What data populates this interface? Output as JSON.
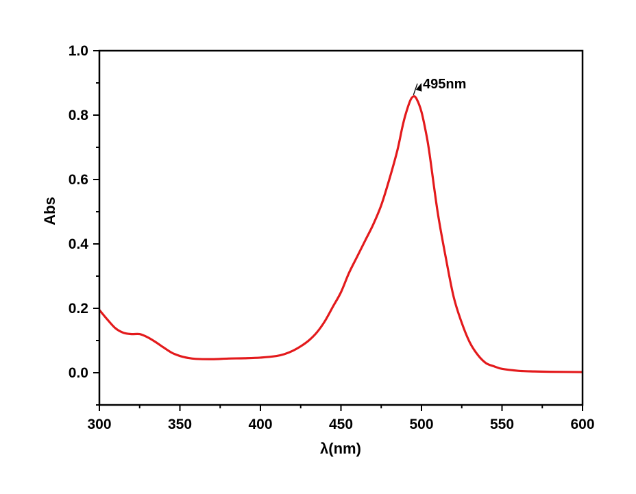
{
  "chart_data": {
    "type": "line",
    "title": "",
    "xlabel": "λ(nm)",
    "ylabel": "Abs",
    "xlim": [
      300,
      600
    ],
    "ylim": [
      -0.1,
      1.0
    ],
    "xticks": [
      300,
      350,
      400,
      450,
      500,
      550,
      600
    ],
    "xtick_labels": [
      "300",
      "350",
      "400",
      "450",
      "500",
      "550",
      "600"
    ],
    "yticks": [
      0.0,
      0.2,
      0.4,
      0.6,
      0.8,
      1.0
    ],
    "ytick_labels": [
      "0.0",
      "0.2",
      "0.4",
      "0.6",
      "0.8",
      "1.0"
    ],
    "grid": false,
    "series": [
      {
        "name": "Abs",
        "color": "#e31a1c",
        "x": [
          300,
          305,
          310,
          315,
          320,
          325,
          330,
          335,
          340,
          345,
          350,
          355,
          360,
          370,
          380,
          390,
          400,
          410,
          415,
          420,
          425,
          430,
          435,
          440,
          445,
          450,
          455,
          460,
          465,
          470,
          475,
          480,
          485,
          488,
          490,
          493,
          495,
          497,
          500,
          503,
          505,
          510,
          515,
          520,
          525,
          530,
          535,
          540,
          545,
          550,
          560,
          570,
          580,
          600
        ],
        "y": [
          0.195,
          0.165,
          0.138,
          0.124,
          0.12,
          0.12,
          0.11,
          0.095,
          0.078,
          0.062,
          0.052,
          0.046,
          0.043,
          0.042,
          0.044,
          0.045,
          0.047,
          0.052,
          0.058,
          0.068,
          0.082,
          0.1,
          0.125,
          0.16,
          0.205,
          0.25,
          0.31,
          0.36,
          0.41,
          0.46,
          0.52,
          0.6,
          0.69,
          0.76,
          0.8,
          0.845,
          0.858,
          0.85,
          0.81,
          0.74,
          0.68,
          0.5,
          0.36,
          0.235,
          0.155,
          0.094,
          0.055,
          0.03,
          0.02,
          0.012,
          0.006,
          0.004,
          0.003,
          0.002
        ]
      }
    ],
    "annotations": [
      {
        "text": "495nm",
        "x": 495,
        "y": 0.858
      }
    ]
  }
}
